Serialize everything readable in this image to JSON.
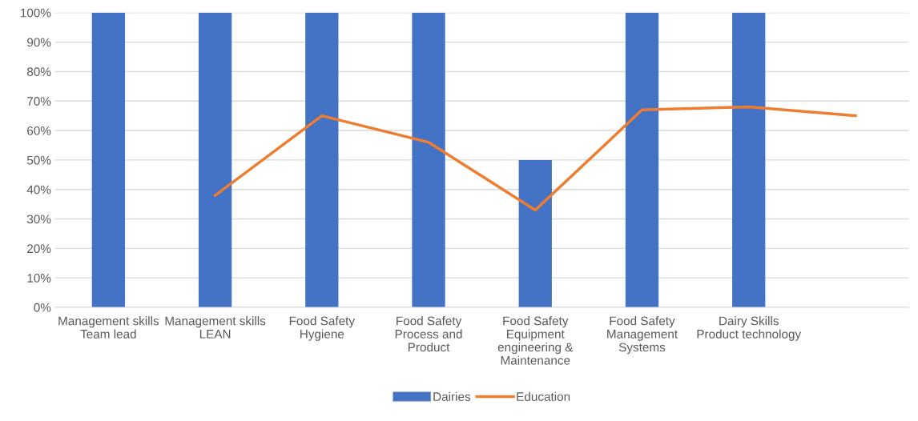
{
  "chart_data": {
    "type": "bar",
    "categories": [
      "Management skills\nTeam lead",
      "Management skills\nLEAN",
      "Food Safety\nHygiene",
      "Food Safety\nProcess and\nProduct",
      "Food Safety\nEquipment\nengineering &\nMaintenance",
      "Food Safety\nManagement\nSystems",
      "Dairy Skills\nProduct technology",
      null
    ],
    "series": [
      {
        "name": "Dairies",
        "color": "#4472c4",
        "values": [
          100,
          100,
          100,
          100,
          50,
          100,
          100,
          null
        ]
      },
      {
        "name": "Education",
        "type": "line",
        "color": "#ed7d31",
        "values": [
          null,
          38,
          65,
          56,
          33,
          67,
          68,
          65
        ]
      }
    ],
    "ylim": [
      0,
      100
    ],
    "yticks": [
      {
        "value": 0,
        "label": "0%"
      },
      {
        "value": 10,
        "label": "10%"
      },
      {
        "value": 20,
        "label": "20%"
      },
      {
        "value": 30,
        "label": "30%"
      },
      {
        "value": 40,
        "label": "40%"
      },
      {
        "value": 50,
        "label": "50%"
      },
      {
        "value": 60,
        "label": "60%"
      },
      {
        "value": 70,
        "label": "70%"
      },
      {
        "value": 80,
        "label": "80%"
      },
      {
        "value": 90,
        "label": "90%"
      },
      {
        "value": 100,
        "label": "100%"
      }
    ],
    "grid": "y",
    "legend": "bottom",
    "marker": "none",
    "line_style": "solid"
  }
}
